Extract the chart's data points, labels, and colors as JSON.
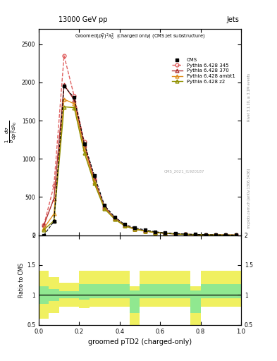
{
  "title_top": "13000 GeV pp",
  "title_right": "Jets",
  "xlabel": "groomed pTD2 (charged-only)",
  "ylabel_ratio": "Ratio to CMS",
  "analysis_id": "CMS_2021_I1920187",
  "rivet_label": "Rivet 3.1.10, ≥ 3.1M events",
  "watermark": "mcplots.cern.ch [arXiv:1306.3436]",
  "x_bins": [
    0.0,
    0.05,
    0.1,
    0.15,
    0.2,
    0.25,
    0.3,
    0.35,
    0.4,
    0.45,
    0.5,
    0.55,
    0.6,
    0.65,
    0.7,
    0.75,
    0.8,
    0.85,
    0.9,
    0.95,
    1.0
  ],
  "cms_data": [
    0.0,
    180.0,
    1950.0,
    1800.0,
    1200.0,
    780.0,
    390.0,
    240.0,
    140.0,
    95.0,
    70.0,
    45.0,
    30.0,
    22.0,
    15.0,
    10.0,
    7.0,
    4.5,
    3.0,
    1.8
  ],
  "py345_data": [
    130.0,
    650.0,
    2350.0,
    1820.0,
    1220.0,
    730.0,
    365.0,
    215.0,
    122.0,
    78.0,
    54.0,
    35.0,
    24.0,
    16.0,
    10.5,
    7.0,
    4.5,
    3.0,
    1.8,
    1.0
  ],
  "py370_data": [
    130.0,
    480.0,
    1970.0,
    1770.0,
    1175.0,
    730.0,
    368.0,
    222.0,
    128.0,
    83.0,
    57.0,
    37.0,
    25.0,
    17.0,
    11.0,
    7.5,
    4.8,
    3.2,
    1.9,
    1.0
  ],
  "pyambt1_data": [
    90.0,
    280.0,
    1780.0,
    1720.0,
    1130.0,
    700.0,
    355.0,
    215.0,
    124.0,
    80.0,
    56.0,
    37.0,
    25.0,
    17.0,
    11.0,
    7.5,
    4.8,
    3.2,
    1.9,
    1.0
  ],
  "pyz2_data": [
    70.0,
    190.0,
    1680.0,
    1670.0,
    1080.0,
    675.0,
    345.0,
    210.0,
    122.0,
    79.0,
    55.0,
    36.0,
    24.0,
    16.0,
    10.5,
    7.0,
    4.5,
    3.0,
    1.7,
    0.9
  ],
  "ratio_yellow_lo": [
    0.6,
    0.7,
    0.8,
    0.8,
    0.78,
    0.8,
    0.8,
    0.8,
    0.8,
    0.5,
    0.8,
    0.8,
    0.8,
    0.8,
    0.8,
    0.5,
    0.8,
    0.8,
    0.8,
    0.8
  ],
  "ratio_yellow_hi": [
    1.4,
    1.3,
    1.2,
    1.2,
    1.4,
    1.4,
    1.4,
    1.4,
    1.4,
    1.15,
    1.4,
    1.4,
    1.4,
    1.4,
    1.4,
    1.15,
    1.4,
    1.4,
    1.4,
    1.4
  ],
  "ratio_green_lo": [
    0.85,
    0.9,
    0.94,
    0.94,
    0.92,
    0.94,
    0.94,
    0.94,
    0.94,
    0.7,
    0.94,
    0.94,
    0.94,
    0.94,
    0.94,
    0.7,
    0.94,
    0.94,
    0.94,
    0.94
  ],
  "ratio_green_hi": [
    1.15,
    1.1,
    1.06,
    1.06,
    1.18,
    1.18,
    1.18,
    1.18,
    1.18,
    1.08,
    1.18,
    1.18,
    1.18,
    1.18,
    1.18,
    1.08,
    1.18,
    1.18,
    1.18,
    1.18
  ],
  "color_py345": "#e06060",
  "color_py370": "#b03030",
  "color_pyambt1": "#e09020",
  "color_pyz2": "#909000",
  "color_green": "#90e890",
  "color_yellow": "#f0f060",
  "ylim_main": [
    0,
    2700
  ],
  "ylim_ratio": [
    0.5,
    2.0
  ],
  "xlim": [
    0.0,
    1.0
  ],
  "yticks_main": [
    0,
    500,
    1000,
    1500,
    2000,
    2500
  ],
  "ytick_labels_main": [
    "0",
    "500",
    "1000",
    "1500",
    "2000",
    "2500"
  ],
  "yticks_ratio": [
    0.5,
    1.0,
    1.5,
    2.0
  ],
  "ytick_labels_ratio": [
    "0.5",
    "1",
    "1.5",
    "2"
  ]
}
